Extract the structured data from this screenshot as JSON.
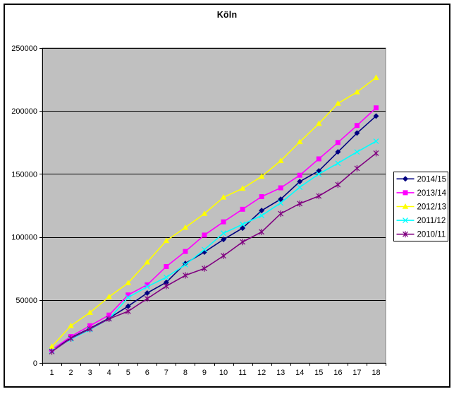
{
  "frame": {
    "background": "#ffffff",
    "border_color": "#000000"
  },
  "chart_data": {
    "type": "line",
    "title": "Köln",
    "xlabel": "",
    "ylabel": "",
    "x": [
      1,
      2,
      3,
      4,
      5,
      6,
      7,
      8,
      9,
      10,
      11,
      12,
      13,
      14,
      15,
      16,
      17,
      18
    ],
    "xtick_labels": [
      "1",
      "2",
      "3",
      "4",
      "5",
      "6",
      "7",
      "8",
      "9",
      "10",
      "11",
      "12",
      "13",
      "14",
      "15",
      "16",
      "17",
      "18"
    ],
    "ylim": [
      0,
      250000
    ],
    "ytick_interval": 50000,
    "ytick_labels": [
      "0",
      "50000",
      "100000",
      "150000",
      "200000",
      "250000"
    ],
    "grid": "horizontal",
    "plot_bg": "#c0c0c0",
    "plot_border": "#808080",
    "gridline_color": "#000000",
    "axis_color": "#000000",
    "text_color": "#000000",
    "legend_position": "right",
    "legend_bg": "#ffffff",
    "legend_border": "#000000",
    "series": [
      {
        "name": "2014/15",
        "color": "#000080",
        "marker": "diamond",
        "values": [
          10000,
          20000,
          27500,
          35500,
          45000,
          55500,
          64000,
          79000,
          88000,
          98000,
          107000,
          121000,
          130000,
          144000,
          152500,
          167500,
          182500,
          196000
        ]
      },
      {
        "name": "2013/14",
        "color": "#ff00ff",
        "marker": "square",
        "values": [
          10500,
          21000,
          29500,
          38000,
          54000,
          62000,
          76500,
          88500,
          101500,
          112000,
          122000,
          132000,
          139000,
          149000,
          162000,
          175000,
          188500,
          202500
        ]
      },
      {
        "name": "2012/13",
        "color": "#ffff00",
        "marker": "triangle",
        "values": [
          13000,
          29500,
          40000,
          52500,
          63500,
          80000,
          97000,
          107500,
          118500,
          131500,
          138500,
          148000,
          160500,
          175500,
          190000,
          206000,
          215000,
          226500
        ]
      },
      {
        "name": "2011/12",
        "color": "#00ffff",
        "marker": "x",
        "values": [
          9500,
          19000,
          26500,
          35000,
          52000,
          60500,
          68000,
          78000,
          90000,
          103000,
          110000,
          117000,
          127000,
          139500,
          150000,
          158500,
          167500,
          176000
        ]
      },
      {
        "name": "2010/11",
        "color": "#800080",
        "marker": "star",
        "values": [
          9000,
          19500,
          27000,
          35000,
          41000,
          51000,
          61000,
          69500,
          75000,
          85000,
          96000,
          104000,
          118500,
          126500,
          132500,
          141500,
          154500,
          166500
        ]
      }
    ]
  }
}
